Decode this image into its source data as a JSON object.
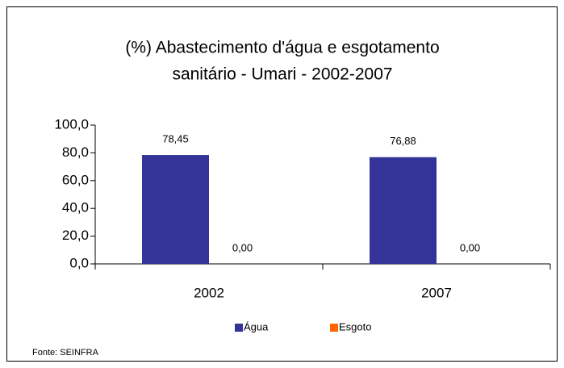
{
  "chart_data": {
    "type": "bar",
    "title": [
      "(%) Abastecimento d'água e esgotamento",
      "sanitário - Umari - 2002-2007"
    ],
    "categories": [
      "2002",
      "2007"
    ],
    "series": [
      {
        "name": "Água",
        "color": "#333399",
        "values": [
          78.45,
          76.88
        ],
        "value_labels": [
          "78,45",
          "76,88"
        ]
      },
      {
        "name": "Esgoto",
        "color": "#ff6600",
        "values": [
          0,
          0
        ],
        "value_labels": [
          "0,00",
          "0,00"
        ]
      }
    ],
    "ylim": [
      0,
      100
    ],
    "yticks": [
      {
        "value": 0,
        "label": "0,0"
      },
      {
        "value": 20,
        "label": "20,0"
      },
      {
        "value": 40,
        "label": "40,0"
      },
      {
        "value": 60,
        "label": "60,0"
      },
      {
        "value": 80,
        "label": "80,0"
      },
      {
        "value": 100,
        "label": "100,0"
      }
    ],
    "legend": "bottom",
    "source": "Fonte: SEINFRA"
  }
}
